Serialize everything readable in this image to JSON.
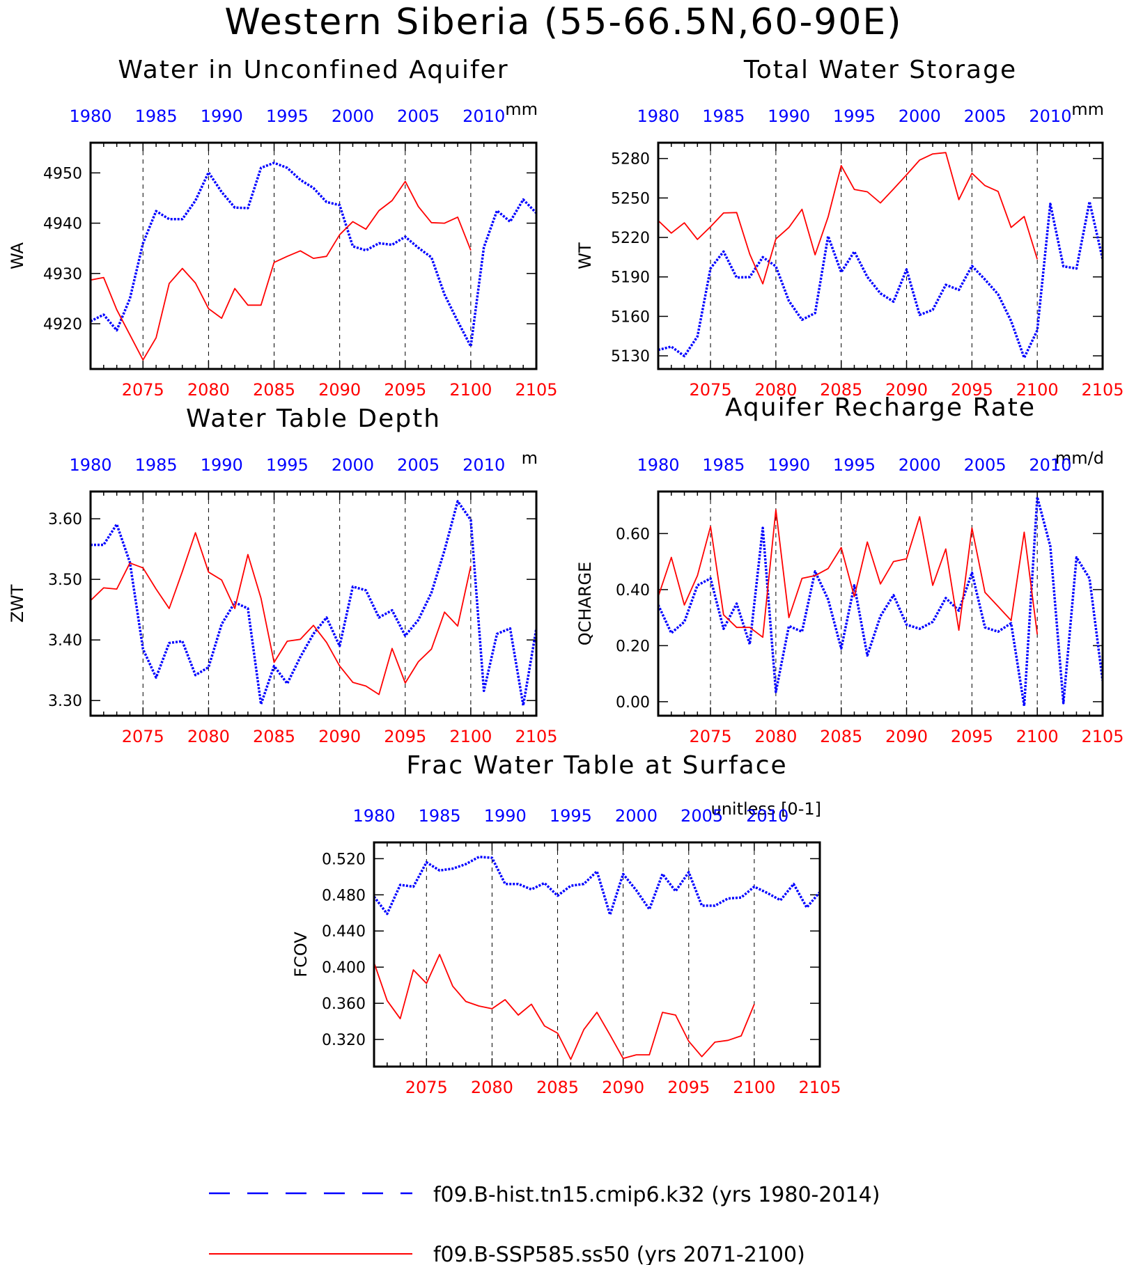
{
  "title": "Western Siberia (55-66.5N,60-90E)",
  "legend": {
    "placement": "bottom",
    "hist_label": "f09.B-hist.tn15.cmip6.k32 (yrs 1980-2014)",
    "ssp_label": "f09.B-SSP585.ss50 (yrs 2071-2100)"
  },
  "colors": {
    "hist": "#0000ff",
    "ssp": "#ff0000",
    "axis": "#000000"
  },
  "chart_data": [
    {
      "type": "line",
      "title": "Water in Unconfined Aquifer",
      "units": "mm",
      "ylabel": "WA",
      "ylim": [
        4911,
        4956
      ],
      "yticks": [
        4920,
        4930,
        4940,
        4950
      ],
      "ytick_labels": [
        "4920",
        "4930",
        "4940",
        "4950"
      ],
      "top_axis_label_years": [
        "1980",
        "1985",
        "1990",
        "1995",
        "2000",
        "2005",
        "2010"
      ],
      "bottom_axis_label_years": [
        "2075",
        "2080",
        "2085",
        "2090",
        "2095",
        "2100",
        "2105"
      ],
      "series": [
        {
          "x": [
            1980,
            1981,
            1982,
            1983,
            1984,
            1985,
            1986,
            1987,
            1988,
            1989,
            1990,
            1991,
            1992,
            1993,
            1994,
            1995,
            1996,
            1997,
            1998,
            1999,
            2000,
            2001,
            2002,
            2003,
            2004,
            2005,
            2006,
            2007,
            2008,
            2009,
            2010,
            2011,
            2012,
            2013,
            2014
          ],
          "values": [
            4920.5,
            4921.8,
            4918.7,
            4925.0,
            4936.0,
            4942.4,
            4940.8,
            4940.8,
            4944.5,
            4950.1,
            4946.2,
            4943.1,
            4943.0,
            4951.0,
            4952.0,
            4951.0,
            4948.6,
            4947.0,
            4944.2,
            4943.6,
            4935.4,
            4934.6,
            4936.0,
            4935.7,
            4937.3,
            4935.1,
            4933.2,
            4925.8,
            4920.5,
            4915.5,
            4935.2,
            4942.5,
            4940.3,
            4944.7,
            4942.0
          ]
        },
        {
          "x": [
            2071,
            2072,
            2073,
            2074,
            2075,
            2076,
            2077,
            2078,
            2079,
            2080,
            2081,
            2082,
            2083,
            2084,
            2085,
            2086,
            2087,
            2088,
            2089,
            2090,
            2091,
            2092,
            2093,
            2094,
            2095,
            2096,
            2097,
            2098,
            2099,
            2100
          ],
          "values": [
            4928.7,
            4929.2,
            4922.8,
            4917.8,
            4912.8,
            4917.2,
            4928.0,
            4931.0,
            4928.1,
            4923.0,
            4921.1,
            4927.0,
            4923.7,
            4923.7,
            4932.2,
            4933.4,
            4934.5,
            4933.0,
            4933.4,
            4937.7,
            4940.3,
            4938.8,
            4942.5,
            4944.5,
            4948.3,
            4943.3,
            4940.1,
            4940.0,
            4941.2,
            4934.6
          ]
        }
      ]
    },
    {
      "type": "line",
      "title": "Total Water Storage",
      "units": "mm",
      "ylabel": "WT",
      "ylim": [
        5120,
        5292
      ],
      "yticks": [
        5130,
        5160,
        5190,
        5220,
        5250,
        5280
      ],
      "ytick_labels": [
        "5130",
        "5160",
        "5190",
        "5220",
        "5250",
        "5280"
      ],
      "top_axis_label_years": [
        "1980",
        "1985",
        "1990",
        "1995",
        "2000",
        "2005",
        "2010"
      ],
      "bottom_axis_label_years": [
        "2075",
        "2080",
        "2085",
        "2090",
        "2095",
        "2100",
        "2105"
      ],
      "series": [
        {
          "x": [
            1980,
            1981,
            1982,
            1983,
            1984,
            1985,
            1986,
            1987,
            1988,
            1989,
            1990,
            1991,
            1992,
            1993,
            1994,
            1995,
            1996,
            1997,
            1998,
            1999,
            2000,
            2001,
            2002,
            2003,
            2004,
            2005,
            2006,
            2007,
            2008,
            2009,
            2010,
            2011,
            2012,
            2013,
            2014
          ],
          "values": [
            5134.5,
            5137.0,
            5129.8,
            5144.7,
            5196.5,
            5209.3,
            5189.5,
            5189.9,
            5205.0,
            5198.0,
            5171.7,
            5157.4,
            5162.5,
            5221.0,
            5193.5,
            5209.3,
            5190.0,
            5177.5,
            5171.2,
            5195.7,
            5161.1,
            5165.0,
            5184.0,
            5180.1,
            5198.3,
            5188.0,
            5176.8,
            5156.5,
            5128.5,
            5149.4,
            5245.5,
            5198.0,
            5196.4,
            5247.2,
            5203.5
          ]
        },
        {
          "x": [
            2071,
            2072,
            2073,
            2074,
            2075,
            2076,
            2077,
            2078,
            2079,
            2080,
            2081,
            2082,
            2083,
            2084,
            2085,
            2086,
            2087,
            2088,
            2089,
            2090,
            2091,
            2092,
            2093,
            2094,
            2095,
            2096,
            2097,
            2098,
            2099,
            2100
          ],
          "values": [
            5232.8,
            5223.3,
            5231.1,
            5218.5,
            5228.2,
            5238.6,
            5238.9,
            5207.3,
            5184.7,
            5218.8,
            5227.6,
            5241.4,
            5206.8,
            5235.6,
            5274.6,
            5256.5,
            5254.7,
            5246.2,
            5256.8,
            5267.6,
            5278.8,
            5283.5,
            5284.5,
            5248.7,
            5268.8,
            5259.4,
            5255.0,
            5227.6,
            5235.9,
            5203.4
          ]
        }
      ]
    },
    {
      "type": "line",
      "title": "Water Table Depth",
      "units": "m",
      "ylabel": "ZWT",
      "ylim": [
        3.275,
        3.645
      ],
      "yticks": [
        3.3,
        3.4,
        3.5,
        3.6
      ],
      "ytick_labels": [
        "3.30",
        "3.40",
        "3.50",
        "3.60"
      ],
      "top_axis_label_years": [
        "1980",
        "1985",
        "1990",
        "1995",
        "2000",
        "2005",
        "2010"
      ],
      "bottom_axis_label_years": [
        "2075",
        "2080",
        "2085",
        "2090",
        "2095",
        "2100",
        "2105"
      ],
      "series": [
        {
          "x": [
            1980,
            1981,
            1982,
            1983,
            1984,
            1985,
            1986,
            1987,
            1988,
            1989,
            1990,
            1991,
            1992,
            1993,
            1994,
            1995,
            1996,
            1997,
            1998,
            1999,
            2000,
            2001,
            2002,
            2003,
            2004,
            2005,
            2006,
            2007,
            2008,
            2009,
            2010,
            2011,
            2012,
            2013,
            2014
          ],
          "values": [
            3.557,
            3.557,
            3.591,
            3.528,
            3.385,
            3.338,
            3.395,
            3.398,
            3.342,
            3.355,
            3.426,
            3.462,
            3.452,
            3.294,
            3.357,
            3.328,
            3.372,
            3.41,
            3.437,
            3.39,
            3.488,
            3.482,
            3.437,
            3.449,
            3.407,
            3.433,
            3.478,
            3.548,
            3.629,
            3.598,
            3.316,
            3.41,
            3.419,
            3.292,
            3.419
          ]
        },
        {
          "x": [
            2071,
            2072,
            2073,
            2074,
            2075,
            2076,
            2077,
            2078,
            2079,
            2080,
            2081,
            2082,
            2083,
            2084,
            2085,
            2086,
            2087,
            2088,
            2089,
            2090,
            2091,
            2092,
            2093,
            2094,
            2095,
            2096,
            2097,
            2098,
            2099,
            2100
          ],
          "values": [
            3.465,
            3.486,
            3.484,
            3.527,
            3.519,
            3.484,
            3.452,
            3.513,
            3.577,
            3.512,
            3.499,
            3.452,
            3.541,
            3.469,
            3.363,
            3.398,
            3.401,
            3.424,
            3.396,
            3.357,
            3.33,
            3.324,
            3.31,
            3.386,
            3.329,
            3.364,
            3.385,
            3.446,
            3.423,
            3.522
          ]
        }
      ]
    },
    {
      "type": "line",
      "title": "Aquifer Recharge Rate",
      "units": "mm/d",
      "ylabel": "QCHARGE",
      "ylim": [
        -0.05,
        0.75
      ],
      "yticks": [
        0.0,
        0.2,
        0.4,
        0.6
      ],
      "ytick_labels": [
        "0.00",
        "0.20",
        "0.40",
        "0.60"
      ],
      "top_axis_label_years": [
        "1980",
        "1985",
        "1990",
        "1995",
        "2000",
        "2005",
        "2010"
      ],
      "bottom_axis_label_years": [
        "2075",
        "2080",
        "2085",
        "2090",
        "2095",
        "2100",
        "2105"
      ],
      "series": [
        {
          "x": [
            1980,
            1981,
            1982,
            1983,
            1984,
            1985,
            1986,
            1987,
            1988,
            1989,
            1990,
            1991,
            1992,
            1993,
            1994,
            1995,
            1996,
            1997,
            1998,
            1999,
            2000,
            2001,
            2002,
            2003,
            2004,
            2005,
            2006,
            2007,
            2008,
            2009,
            2010,
            2011,
            2012,
            2013,
            2014
          ],
          "values": [
            0.345,
            0.245,
            0.285,
            0.415,
            0.44,
            0.26,
            0.35,
            0.205,
            0.62,
            0.035,
            0.27,
            0.25,
            0.465,
            0.365,
            0.19,
            0.415,
            0.165,
            0.305,
            0.38,
            0.275,
            0.26,
            0.285,
            0.37,
            0.325,
            0.46,
            0.265,
            0.25,
            0.28,
            -0.015,
            0.73,
            0.555,
            -0.005,
            0.515,
            0.44,
            0.075
          ]
        },
        {
          "x": [
            2071,
            2072,
            2073,
            2074,
            2075,
            2076,
            2077,
            2078,
            2079,
            2080,
            2081,
            2082,
            2083,
            2084,
            2085,
            2086,
            2087,
            2088,
            2089,
            2090,
            2091,
            2092,
            2093,
            2094,
            2095,
            2096,
            2097,
            2098,
            2099,
            2100
          ],
          "values": [
            0.375,
            0.515,
            0.345,
            0.45,
            0.625,
            0.31,
            0.265,
            0.265,
            0.23,
            0.685,
            0.3,
            0.44,
            0.45,
            0.475,
            0.55,
            0.375,
            0.57,
            0.42,
            0.5,
            0.51,
            0.66,
            0.415,
            0.545,
            0.255,
            0.62,
            0.39,
            0.34,
            0.29,
            0.605,
            0.24
          ]
        }
      ]
    },
    {
      "type": "line",
      "title": "Frac Water Table at Surface",
      "units": "unitless [0-1]",
      "ylabel": "FCOV",
      "ylim": [
        0.29,
        0.538
      ],
      "yticks": [
        0.32,
        0.36,
        0.4,
        0.44,
        0.48,
        0.52
      ],
      "ytick_labels": [
        "0.320",
        "0.360",
        "0.400",
        "0.440",
        "0.480",
        "0.520"
      ],
      "top_axis_label_years": [
        "1980",
        "1985",
        "1990",
        "1995",
        "2000",
        "2005",
        "2010"
      ],
      "bottom_axis_label_years": [
        "2075",
        "2080",
        "2085",
        "2090",
        "2095",
        "2100",
        "2105"
      ],
      "series": [
        {
          "x": [
            1980,
            1981,
            1982,
            1983,
            1984,
            1985,
            1986,
            1987,
            1988,
            1989,
            1990,
            1991,
            1992,
            1993,
            1994,
            1995,
            1996,
            1997,
            1998,
            1999,
            2000,
            2001,
            2002,
            2003,
            2004,
            2005,
            2006,
            2007,
            2008,
            2009,
            2010,
            2011,
            2012,
            2013,
            2014
          ],
          "values": [
            0.478,
            0.459,
            0.491,
            0.489,
            0.516,
            0.507,
            0.509,
            0.514,
            0.522,
            0.521,
            0.492,
            0.492,
            0.486,
            0.493,
            0.479,
            0.49,
            0.492,
            0.506,
            0.458,
            0.503,
            0.485,
            0.464,
            0.503,
            0.484,
            0.505,
            0.468,
            0.468,
            0.476,
            0.477,
            0.489,
            0.482,
            0.474,
            0.492,
            0.466,
            0.483
          ]
        },
        {
          "x": [
            2071,
            2072,
            2073,
            2074,
            2075,
            2076,
            2077,
            2078,
            2079,
            2080,
            2081,
            2082,
            2083,
            2084,
            2085,
            2086,
            2087,
            2088,
            2089,
            2090,
            2091,
            2092,
            2093,
            2094,
            2095,
            2096,
            2097,
            2098,
            2099,
            2100
          ],
          "values": [
            0.405,
            0.363,
            0.343,
            0.397,
            0.382,
            0.414,
            0.379,
            0.362,
            0.357,
            0.354,
            0.364,
            0.347,
            0.359,
            0.335,
            0.327,
            0.298,
            0.331,
            0.35,
            0.325,
            0.299,
            0.303,
            0.303,
            0.35,
            0.347,
            0.318,
            0.301,
            0.317,
            0.319,
            0.324,
            0.359
          ]
        }
      ]
    }
  ]
}
